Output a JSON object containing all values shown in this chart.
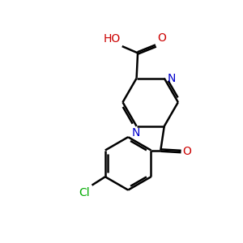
{
  "background_color": "#ffffff",
  "bond_color": "#000000",
  "N_color": "#0000cc",
  "O_color": "#cc0000",
  "Cl_color": "#00aa00",
  "linewidth": 1.8,
  "figsize": [
    3.0,
    3.0
  ],
  "dpi": 100,
  "xlim": [
    0,
    10
  ],
  "ylim": [
    0,
    10
  ]
}
